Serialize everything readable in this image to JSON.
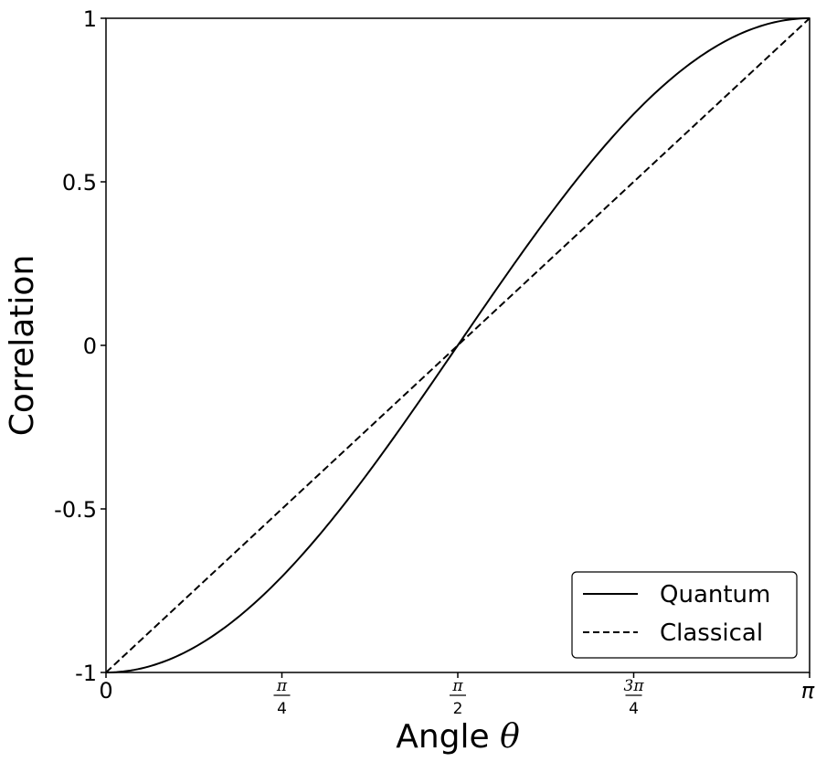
{
  "chart_data": {
    "type": "line",
    "xlabel_prefix": "Angle ",
    "xlabel_symbol": "θ",
    "ylabel": "Correlation",
    "xlim": [
      0,
      3.14159265
    ],
    "ylim": [
      -1,
      1
    ],
    "grid": false,
    "legend_position": "bottom-right",
    "x_ticks": [
      {
        "value": 0,
        "label": "0",
        "kind": "plain"
      },
      {
        "value": 0.78539816,
        "num": "π",
        "den": "4",
        "kind": "fraction"
      },
      {
        "value": 1.57079633,
        "num": "π",
        "den": "2",
        "kind": "fraction"
      },
      {
        "value": 2.35619449,
        "num": "3π",
        "den": "4",
        "kind": "fraction"
      },
      {
        "value": 3.14159265,
        "label": "π",
        "kind": "italic"
      }
    ],
    "y_ticks": [
      {
        "value": -1,
        "label": "-1"
      },
      {
        "value": -0.5,
        "label": "-0.5"
      },
      {
        "value": 0,
        "label": "0"
      },
      {
        "value": 0.5,
        "label": "0.5"
      },
      {
        "value": 1,
        "label": "1"
      }
    ],
    "series": [
      {
        "name": "Quantum",
        "style": "solid",
        "color": "#000000",
        "x": [
          0,
          0.19635,
          0.3927,
          0.58905,
          0.7854,
          0.98175,
          1.1781,
          1.37445,
          1.5708,
          1.76715,
          1.9635,
          2.15985,
          2.35619,
          2.55254,
          2.74889,
          2.94524,
          3.14159
        ],
        "y": [
          -1,
          -0.9808,
          -0.9239,
          -0.8315,
          -0.7071,
          -0.5556,
          -0.3827,
          -0.1951,
          0,
          0.1951,
          0.3827,
          0.5556,
          0.7071,
          0.8315,
          0.9239,
          0.9808,
          1
        ]
      },
      {
        "name": "Classical",
        "style": "dashed",
        "color": "#000000",
        "x": [
          0,
          3.14159
        ],
        "y": [
          -1,
          1
        ]
      }
    ]
  }
}
